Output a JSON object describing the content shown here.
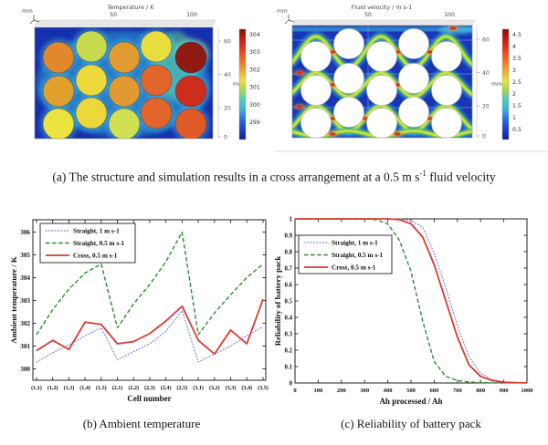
{
  "figure": {
    "caption_a": {
      "pre": "(a) The structure and simulation results in a cross arrangement at a 0.5 m s",
      "sup": "-1",
      "post": " fluid velocity"
    },
    "caption_b": "(b) Ambient temperature",
    "caption_c": "(c) Reliability of battery pack"
  },
  "panels": {
    "temperature": {
      "title": "Temperature / K",
      "x_ticks": [
        "50",
        "100"
      ],
      "y_ticks": [
        "60",
        "40",
        "20",
        "0"
      ],
      "unit": "mm",
      "colorbar_labels": [
        "304",
        "303",
        "302",
        "301",
        "300",
        "299"
      ],
      "background": "#162fae",
      "cell_colors": [
        [
          "#e2882c",
          "#c6d94f",
          "#e29a33",
          "#e7dd3f",
          "#8e1a12"
        ],
        [
          "#dfa02e",
          "#ecd93c",
          "#e09a31",
          "#e2652b",
          "#cd2d1c"
        ],
        [
          "#ece340",
          "#ecd83a",
          "#cfe052",
          "#e2662c",
          "#de5b28"
        ]
      ]
    },
    "velocity": {
      "title": "Fluid velocity / m s-1",
      "x_ticks": [
        "50",
        "100"
      ],
      "y_ticks": [
        "60",
        "40",
        "20",
        "0"
      ],
      "unit": "mm",
      "colorbar_labels": [
        "4.5",
        "4",
        "3.5",
        "3",
        "2.5",
        "2",
        "1.5",
        "1",
        "0.5"
      ],
      "background": "#1636b6",
      "cell_color": "#ffffff",
      "flow_colors": {
        "slow": "#45c6e2",
        "mid": "#6cc23e",
        "fast": "#d8e84a",
        "max": "#d8301a"
      }
    }
  },
  "chart_data": [
    {
      "id": "ambient-temperature",
      "type": "line",
      "xlabel": "Cell number",
      "ylabel": "Ambient temperature / K",
      "categories": [
        "(1,1)",
        "(1,2)",
        "(1,3)",
        "(1,4)",
        "(1,5)",
        "(2,1)",
        "(2,2)",
        "(2,3)",
        "(2,4)",
        "(2,5)",
        "(3,1)",
        "(3,2)",
        "(3,3)",
        "(3,4)",
        "(3,5)"
      ],
      "ylim": [
        299.5,
        306.5
      ],
      "yticks": [
        300,
        301,
        302,
        303,
        304,
        305,
        306
      ],
      "grid": false,
      "legend_position": "upper left",
      "series": [
        {
          "name": "Straight, 1 m s-1",
          "color": "#7b86e0",
          "style": "dotted",
          "values": [
            300.3,
            300.7,
            301.05,
            301.45,
            301.8,
            300.4,
            300.75,
            301.1,
            301.65,
            302.55,
            300.3,
            300.65,
            301.0,
            301.45,
            301.85
          ]
        },
        {
          "name": "Straight, 0.5 m s-1",
          "color": "#2e8b2e",
          "style": "dashed",
          "values": [
            301.5,
            302.6,
            303.5,
            304.2,
            304.6,
            301.8,
            302.85,
            303.7,
            304.7,
            306.0,
            301.5,
            302.45,
            303.25,
            304.0,
            304.6
          ]
        },
        {
          "name": "Cross, 0.5 m s-1",
          "color": "#d93a32",
          "style": "solid",
          "values": [
            300.8,
            301.25,
            300.85,
            302.05,
            301.95,
            301.1,
            301.2,
            301.55,
            302.1,
            302.75,
            301.25,
            300.65,
            301.7,
            301.1,
            303.05
          ]
        }
      ]
    },
    {
      "id": "reliability",
      "type": "line",
      "xlabel": "Ah processed / Ah",
      "ylabel": "Reliability of battery pack",
      "xlim": [
        0,
        1000
      ],
      "ylim": [
        0,
        1
      ],
      "xticks": [
        0,
        100,
        200,
        300,
        400,
        500,
        600,
        700,
        800,
        900,
        1000
      ],
      "yticks": [
        0,
        0.1,
        0.2,
        0.3,
        0.4,
        0.5,
        0.6,
        0.7,
        0.8,
        0.9,
        1
      ],
      "grid": false,
      "legend_position": "upper left",
      "x": [
        0,
        50,
        100,
        150,
        200,
        250,
        300,
        350,
        400,
        450,
        500,
        550,
        600,
        650,
        700,
        750,
        800,
        850,
        900,
        950,
        1000
      ],
      "series": [
        {
          "name": "Straight, 1 m s-1",
          "color": "#7b86e0",
          "style": "dotted",
          "values": [
            1,
            1,
            1,
            1,
            1,
            1,
            1,
            1,
            1,
            1,
            0.99,
            0.95,
            0.79,
            0.58,
            0.35,
            0.16,
            0.06,
            0.02,
            0.007,
            0.002,
            0.001
          ]
        },
        {
          "name": "Straight, 0.5 m s-1",
          "color": "#2e8b2e",
          "style": "dashed",
          "values": [
            1,
            1,
            1,
            1,
            1,
            1,
            1,
            0.995,
            0.97,
            0.87,
            0.68,
            0.38,
            0.13,
            0.04,
            0.015,
            0.006,
            0.002,
            0.001,
            0.001,
            0.001,
            0.001
          ]
        },
        {
          "name": "Cross, 0.5 m s-1",
          "color": "#d93a32",
          "style": "solid",
          "values": [
            1,
            1,
            1,
            1,
            1,
            1,
            1,
            1,
            1,
            0.995,
            0.97,
            0.89,
            0.72,
            0.5,
            0.28,
            0.11,
            0.04,
            0.015,
            0.005,
            0.002,
            0.001
          ]
        }
      ]
    }
  ]
}
